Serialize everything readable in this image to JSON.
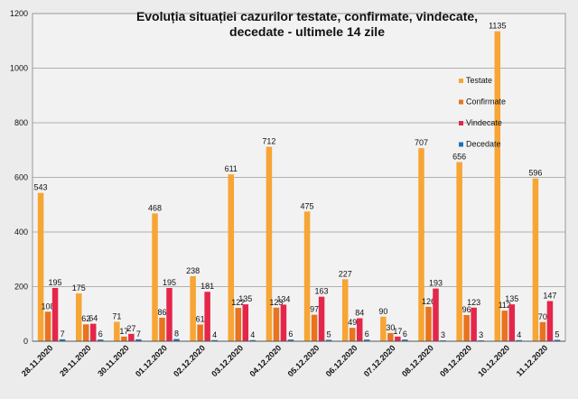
{
  "chart_data": {
    "type": "bar",
    "title": "Evoluția situației cazurilor testate, confirmate, vindecate, decedate -  ultimele 14 zile",
    "categories": [
      "28.11.2020",
      "29.11.2020",
      "30.11.2020",
      "01.12.2020",
      "02.12.2020",
      "03.12.2020",
      "04.12.2020",
      "05.12.2020",
      "06.12.2020",
      "07.12.2020",
      "08.12.2020",
      "09.12.2020",
      "10.12.2020",
      "11.12.2020"
    ],
    "series": [
      {
        "name": "Testate",
        "color": "#f7a534",
        "values": [
          543,
          175,
          71,
          468,
          238,
          611,
          712,
          475,
          227,
          90,
          707,
          656,
          1135,
          596
        ]
      },
      {
        "name": "Confirmate",
        "color": "#e9731e",
        "values": [
          108,
          62,
          17,
          86,
          61,
          122,
          123,
          97,
          49,
          30,
          126,
          96,
          112,
          70
        ]
      },
      {
        "name": "Vindecate",
        "color": "#e5264b",
        "values": [
          195,
          64,
          27,
          195,
          181,
          135,
          134,
          163,
          84,
          17,
          193,
          123,
          135,
          147
        ]
      },
      {
        "name": "Decedate",
        "color": "#1f70b8",
        "values": [
          7,
          6,
          7,
          8,
          4,
          4,
          6,
          5,
          6,
          6,
          3,
          3,
          4,
          5
        ]
      }
    ],
    "ylim": [
      0,
      1200
    ],
    "yticks": [
      0,
      200,
      400,
      600,
      800,
      1000,
      1200
    ],
    "grid": true,
    "legend": "right"
  }
}
